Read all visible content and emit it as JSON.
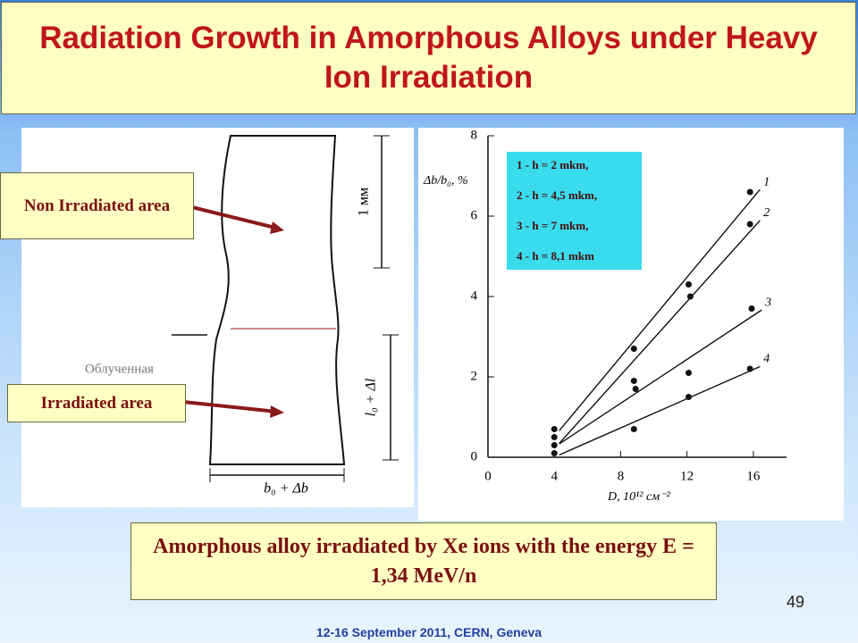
{
  "header": {
    "title": "Radiation Growth in Amorphous Alloys under Heavy Ion Irradiation"
  },
  "callouts": {
    "non_irradiated": "Non Irradiated area",
    "irradiated": "Irradiated area"
  },
  "specimen": {
    "length_label": "1 мм",
    "elongation_label": "l₀ + Δl",
    "width_label": "b₀ + Δb",
    "side_label": "Облученная"
  },
  "chart_data": {
    "type": "scatter",
    "x_label": "D, 10¹² см⁻²",
    "y_label": "Δb/b₀, %",
    "xlim": [
      0,
      18
    ],
    "ylim": [
      0,
      8
    ],
    "xticks": [
      0,
      4,
      8,
      12,
      16
    ],
    "yticks": [
      0,
      2,
      4,
      6,
      8
    ],
    "series": [
      {
        "name": "1 - h = 2 mkm,",
        "label": "1",
        "color": "#111111",
        "x": [
          4,
          8.8,
          12.1,
          15.8
        ],
        "values": [
          0.7,
          2.7,
          4.3,
          6.6
        ]
      },
      {
        "name": "2 - h = 4,5 mkm,",
        "label": "2",
        "color": "#111111",
        "x": [
          4,
          8.8,
          12.2,
          15.8
        ],
        "values": [
          0.5,
          1.9,
          4.0,
          5.8
        ]
      },
      {
        "name": "3 - h = 7 mkm,",
        "label": "3",
        "color": "#111111",
        "x": [
          4,
          8.9,
          12.1,
          15.9
        ],
        "values": [
          0.3,
          1.7,
          2.1,
          3.7
        ]
      },
      {
        "name": "4 - h = 8,1 mkm",
        "label": "4",
        "color": "#111111",
        "x": [
          4,
          8.8,
          12.1,
          15.8
        ],
        "values": [
          0.1,
          0.7,
          1.5,
          2.2
        ]
      }
    ]
  },
  "caption": "Amorphous alloy irradiated by Xe ions with the energy E = 1,34 MeV/n",
  "footer": {
    "page": "49",
    "event": "12-16 September 2011, CERN, Geneva"
  }
}
